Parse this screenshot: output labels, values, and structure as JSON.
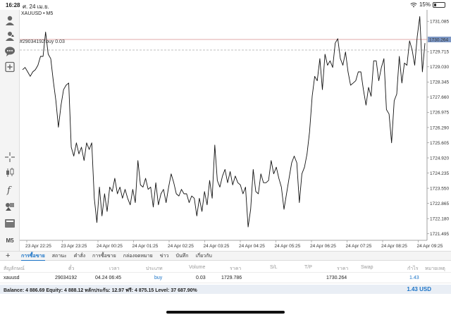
{
  "status_bar": {
    "time": "16:28",
    "date": "ศ. 24 เม.ย.",
    "battery": "15%",
    "wifi_icon": "wifi-icon",
    "battery_icon": "battery-icon"
  },
  "toolbar": {
    "icons": [
      "account-icon",
      "trade-icon",
      "chat-icon",
      "new-order-icon",
      "crosshair-icon",
      "candles-icon",
      "indicator-icon",
      "objects-icon",
      "timeframe-icon"
    ],
    "timeframe_label": "M5"
  },
  "chart": {
    "symbol_title": "XAUUSD • M5",
    "order_label": "#29034192 buy 0.03",
    "current_price_label": "1730.264",
    "colors": {
      "line": "#111111",
      "bid_line": "#d98c8c",
      "order_line": "#aaaaaa",
      "price_tag": "#7b96c4"
    }
  },
  "chart_data": {
    "type": "line",
    "title": "XAUUSD • M5",
    "y_ticks": [
      "1731.085",
      "1729.715",
      "1729.030",
      "1728.345",
      "1727.660",
      "1726.975",
      "1726.290",
      "1725.605",
      "1724.920",
      "1724.235",
      "1723.550",
      "1722.865",
      "1722.180",
      "1721.495"
    ],
    "x_ticks": [
      "23 Apr 22:25",
      "23 Apr 23:25",
      "24 Apr 00:25",
      "24 Apr 01:25",
      "24 Apr 02:25",
      "24 Apr 03:25",
      "24 Apr 04:25",
      "24 Apr 05:25",
      "24 Apr 06:25",
      "24 Apr 07:25",
      "24 Apr 08:25",
      "24 Apr 09:25"
    ],
    "ylim": [
      1721.2,
      1731.6
    ],
    "bid_price": 1730.264,
    "order_price": 1729.786,
    "series": [
      {
        "values": [
          1728.9,
          1729.0,
          1728.8,
          1728.6,
          1728.8,
          1728.9,
          1729.1,
          1729.5,
          1729.5,
          1730.6,
          1729.6,
          1729.4,
          1728.4,
          1727.5,
          1726.3,
          1727.3,
          1728.0,
          1728.2,
          1728.3,
          1725.4,
          1725.0,
          1725.6,
          1725.1,
          1725.4,
          1724.8,
          1725.6,
          1725.3,
          1725.6,
          1723.1,
          1722.0,
          1723.6,
          1722.3,
          1723.3,
          1722.5,
          1723.6,
          1723.4,
          1724.0,
          1723.3,
          1723.6,
          1723.1,
          1723.5,
          1723.1,
          1722.8,
          1723.5,
          1722.9,
          1724.8,
          1723.7,
          1723.6,
          1724.0,
          1723.5,
          1723.6,
          1722.7,
          1723.8,
          1722.8,
          1723.3,
          1723.5,
          1722.9,
          1723.6,
          1724.2,
          1723.8,
          1723.3,
          1723.2,
          1723.5,
          1723.3,
          1723.3,
          1722.9,
          1723.2,
          1723.1,
          1722.3,
          1723.1,
          1722.5,
          1723.4,
          1722.8,
          1723.9,
          1723.1,
          1725.5,
          1723.9,
          1723.6,
          1724.1,
          1724.4,
          1723.8,
          1724.3,
          1723.7,
          1724.1,
          1723.8,
          1723.7,
          1723.3,
          1723.6,
          1721.8,
          1722.6,
          1724.4,
          1723.4,
          1723.3,
          1724.2,
          1723.8,
          1723.8,
          1723.9,
          1724.8,
          1724.2,
          1724.5,
          1724.0,
          1723.6,
          1722.6,
          1723.3,
          1724.0,
          1724.7,
          1725.0,
          1724.7,
          1722.9,
          1724.2,
          1724.5,
          1725.1,
          1726.1,
          1727.7,
          1728.6,
          1728.4,
          1729.4,
          1728.0,
          1729.6,
          1729.1,
          1729.3,
          1729.0,
          1730.1,
          1730.3,
          1729.4,
          1729.1,
          1729.7,
          1728.8,
          1728.2,
          1728.3,
          1728.4,
          1728.8,
          1728.8,
          1728.0,
          1727.3,
          1728.1,
          1727.7,
          1729.3,
          1729.3,
          1728.4,
          1729.0,
          1729.4,
          1727.1,
          1726.9,
          1725.6,
          1727.5,
          1727.8,
          1729.5,
          1728.3,
          1729.2,
          1729.1,
          1730.2,
          1729.8,
          1729.1,
          1730.4,
          1731.3,
          1728.8,
          1730.1
        ]
      }
    ]
  },
  "tabs": {
    "add_label": "+",
    "items": [
      {
        "label": "การซื้อขาย",
        "active": true
      },
      {
        "label": "สถานะ",
        "active": false
      },
      {
        "label": "คำสั่ง",
        "active": false
      },
      {
        "label": "การซื้อขาย",
        "active": false
      },
      {
        "label": "กล่องจดหมาย",
        "active": false
      },
      {
        "label": "ข่าว",
        "active": false
      },
      {
        "label": "บันทึก",
        "active": false
      },
      {
        "label": "เกี่ยวกับ",
        "active": false
      }
    ]
  },
  "positions": {
    "headers": {
      "symbol": "สัญลักษณ์",
      "ticket": "ตั๋ว",
      "time": "เวลา",
      "type": "ประเภท",
      "volume": "Volume",
      "price": "ราคา",
      "sl": "S/L",
      "tp": "T/P",
      "current_price": "ราคา",
      "swap": "Swap",
      "profit": "กำไร",
      "comment": "หมายเหตุ"
    },
    "rows": [
      {
        "symbol": "xauusd",
        "ticket": "29034192",
        "time": "04.24 06:45",
        "type": "buy",
        "volume": "0.03",
        "price": "1729.786",
        "sl": "",
        "tp": "",
        "current_price": "1730.264",
        "swap": "",
        "profit": "1.43",
        "comment": ""
      }
    ]
  },
  "balance": {
    "text": "Balance: 4 886.69 Equity: 4 888.12 หลักประกัน: 12.97 ฟรี: 4 875.15 Level: 37 687.90%",
    "total": "1.43  USD"
  }
}
